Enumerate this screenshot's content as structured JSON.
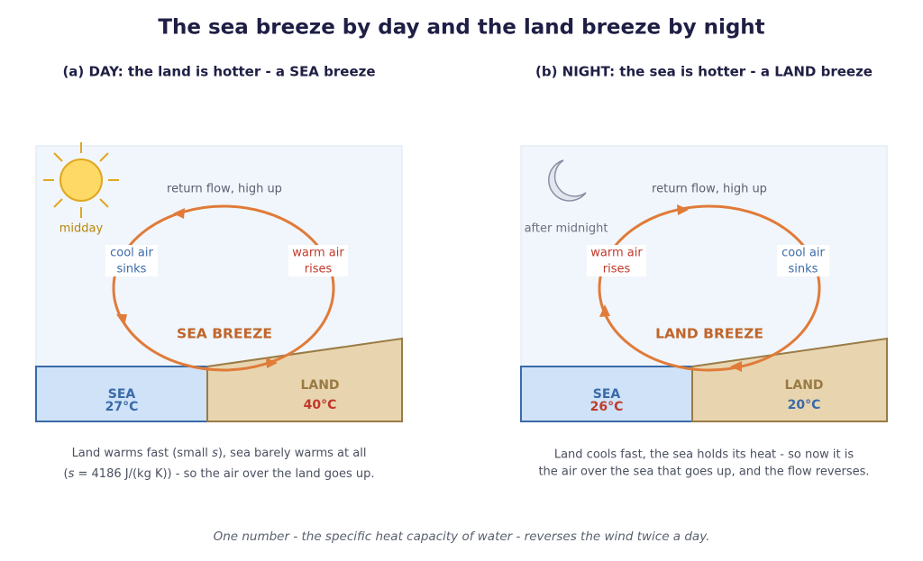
{
  "title": "The sea breeze by day and the land breeze by night",
  "panels": [
    {
      "heading": "(a) DAY: the land is hotter - a SEA breeze",
      "sky_label": "midday",
      "top_label": "return flow, high up",
      "left_label": [
        "cool air",
        "sinks"
      ],
      "right_label": [
        "warm air",
        "rises"
      ],
      "breeze": "SEA BREEZE",
      "sea": {
        "name": "SEA",
        "temp": "27°C"
      },
      "land": {
        "name": "LAND",
        "temp": "40°C"
      },
      "caption": [
        [
          "Land warms fast (small ",
          "s",
          "), sea barely warms at all"
        ],
        [
          "(",
          "s",
          " = 4186 J/(kg K)) - so the air over the land goes up."
        ]
      ]
    },
    {
      "heading": "(b) NIGHT: the sea is hotter - a LAND breeze",
      "sky_label": "after midnight",
      "top_label": "return flow, high up",
      "left_label": [
        "warm air",
        "rises"
      ],
      "right_label": [
        "cool air",
        "sinks"
      ],
      "breeze": "LAND BREEZE",
      "sea": {
        "name": "SEA",
        "temp": "26°C"
      },
      "land": {
        "name": "LAND",
        "temp": "20°C"
      },
      "caption": [
        [
          "Land cools fast, the sea holds its heat - so now it is"
        ],
        [
          "the air over the sea that goes up, and the flow reverses."
        ]
      ]
    }
  ],
  "footer": "One number - the specific heat capacity of water - reverses the wind twice a day."
}
